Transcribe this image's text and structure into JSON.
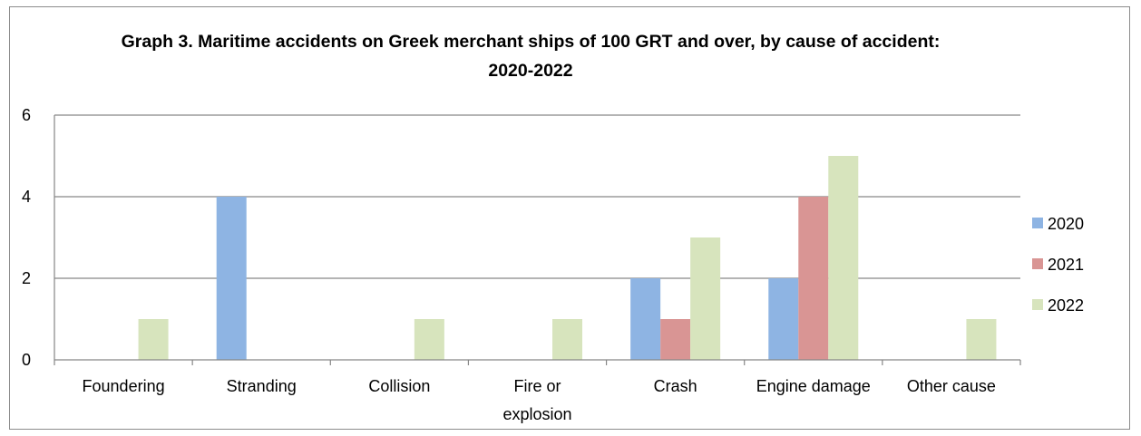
{
  "chart_data": {
    "type": "bar",
    "title": "Graph 3. Maritime accidents on Greek merchant ships of 100 GRT and over, by cause of accident: 2020-2022",
    "categories": [
      "Foundering",
      "Stranding",
      "Collision",
      "Fire or explosion",
      "Crash",
      "Engine damage",
      "Other cause"
    ],
    "category_label_lines": [
      [
        "Foundering"
      ],
      [
        "Stranding"
      ],
      [
        "Collision"
      ],
      [
        "Fire or",
        "explosion"
      ],
      [
        "Crash"
      ],
      [
        "Engine damage"
      ],
      [
        "Other cause"
      ]
    ],
    "series": [
      {
        "name": "2020",
        "values": [
          0,
          4,
          0,
          0,
          2,
          2,
          0
        ],
        "color": "#8eb4e3"
      },
      {
        "name": "2021",
        "values": [
          0,
          0,
          0,
          0,
          1,
          4,
          0
        ],
        "color": "#d99594"
      },
      {
        "name": "2022",
        "values": [
          1,
          0,
          1,
          1,
          3,
          5,
          1
        ],
        "color": "#d7e4bd"
      }
    ],
    "ylim": [
      0,
      6
    ],
    "yticks": [
      0,
      2,
      4,
      6
    ],
    "xlabel": "",
    "ylabel": "",
    "grid": true,
    "legend_position": "right"
  }
}
